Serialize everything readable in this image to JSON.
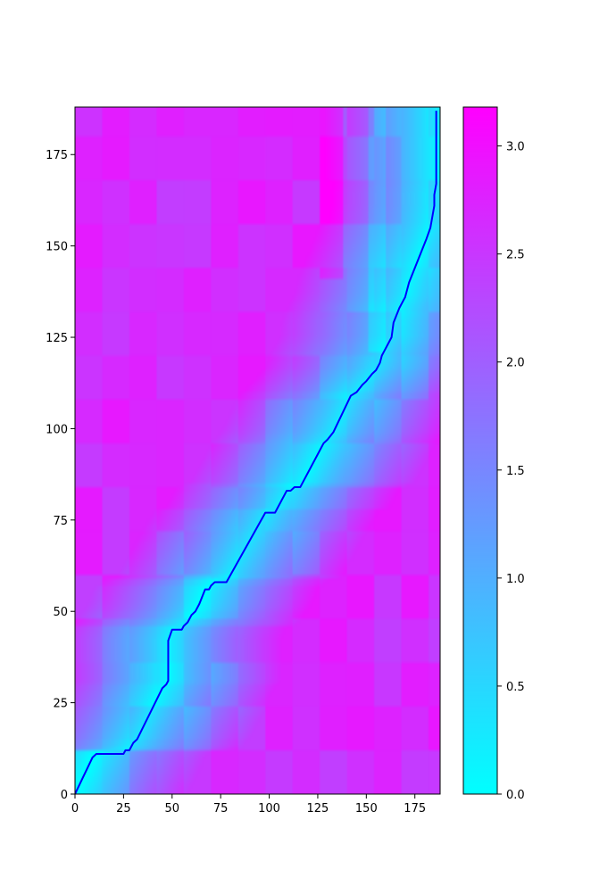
{
  "chart_data": {
    "type": "heatmap",
    "title": "",
    "xlabel": "",
    "ylabel": "",
    "xlim": [
      0,
      188
    ],
    "ylim": [
      0,
      188
    ],
    "colormap": "cool",
    "colormap_endpoints": [
      "#00ffff",
      "#ff00ff"
    ],
    "line_color": "#0000ff",
    "x_ticks": [
      0,
      25,
      50,
      75,
      100,
      125,
      150,
      175
    ],
    "y_ticks": [
      0,
      25,
      50,
      75,
      100,
      125,
      150,
      175
    ],
    "x_tick_labels": [
      "0",
      "25",
      "50",
      "75",
      "100",
      "125",
      "150",
      "175"
    ],
    "y_tick_labels": [
      "0",
      "25",
      "50",
      "75",
      "100",
      "125",
      "150",
      "175"
    ],
    "colorbar": {
      "range": [
        0,
        3.18
      ],
      "ticks": [
        0,
        0.5,
        1.0,
        1.5,
        2.0,
        2.5,
        3.0
      ],
      "tick_labels": [
        "0.0",
        "0.5",
        "1.0",
        "1.5",
        "2.0",
        "2.5",
        "3.0"
      ]
    },
    "alignment_path": {
      "x": [
        0,
        9,
        11,
        25,
        26,
        28,
        30,
        32,
        45,
        47,
        48,
        48,
        50,
        52,
        55,
        56,
        58,
        60,
        62,
        64,
        67,
        69,
        70,
        72,
        78,
        98,
        103,
        109,
        111,
        113,
        116,
        128,
        130,
        133,
        142,
        145,
        148,
        150,
        153,
        155,
        156,
        157,
        158,
        159,
        163,
        164,
        167,
        169,
        170,
        172,
        181,
        183,
        185,
        185,
        186,
        186
      ],
      "y": [
        0,
        10,
        11,
        11,
        12,
        12,
        14,
        15,
        29,
        30,
        31,
        42,
        45,
        45,
        45,
        46,
        47,
        49,
        50,
        52,
        56,
        56,
        57,
        58,
        58,
        77,
        77,
        83,
        83,
        84,
        84,
        96,
        97,
        99,
        109,
        110,
        112,
        113,
        115,
        116,
        117,
        118,
        120,
        121,
        125,
        129,
        133,
        135,
        136,
        140,
        152,
        155,
        161,
        164,
        167,
        187
      ]
    }
  }
}
